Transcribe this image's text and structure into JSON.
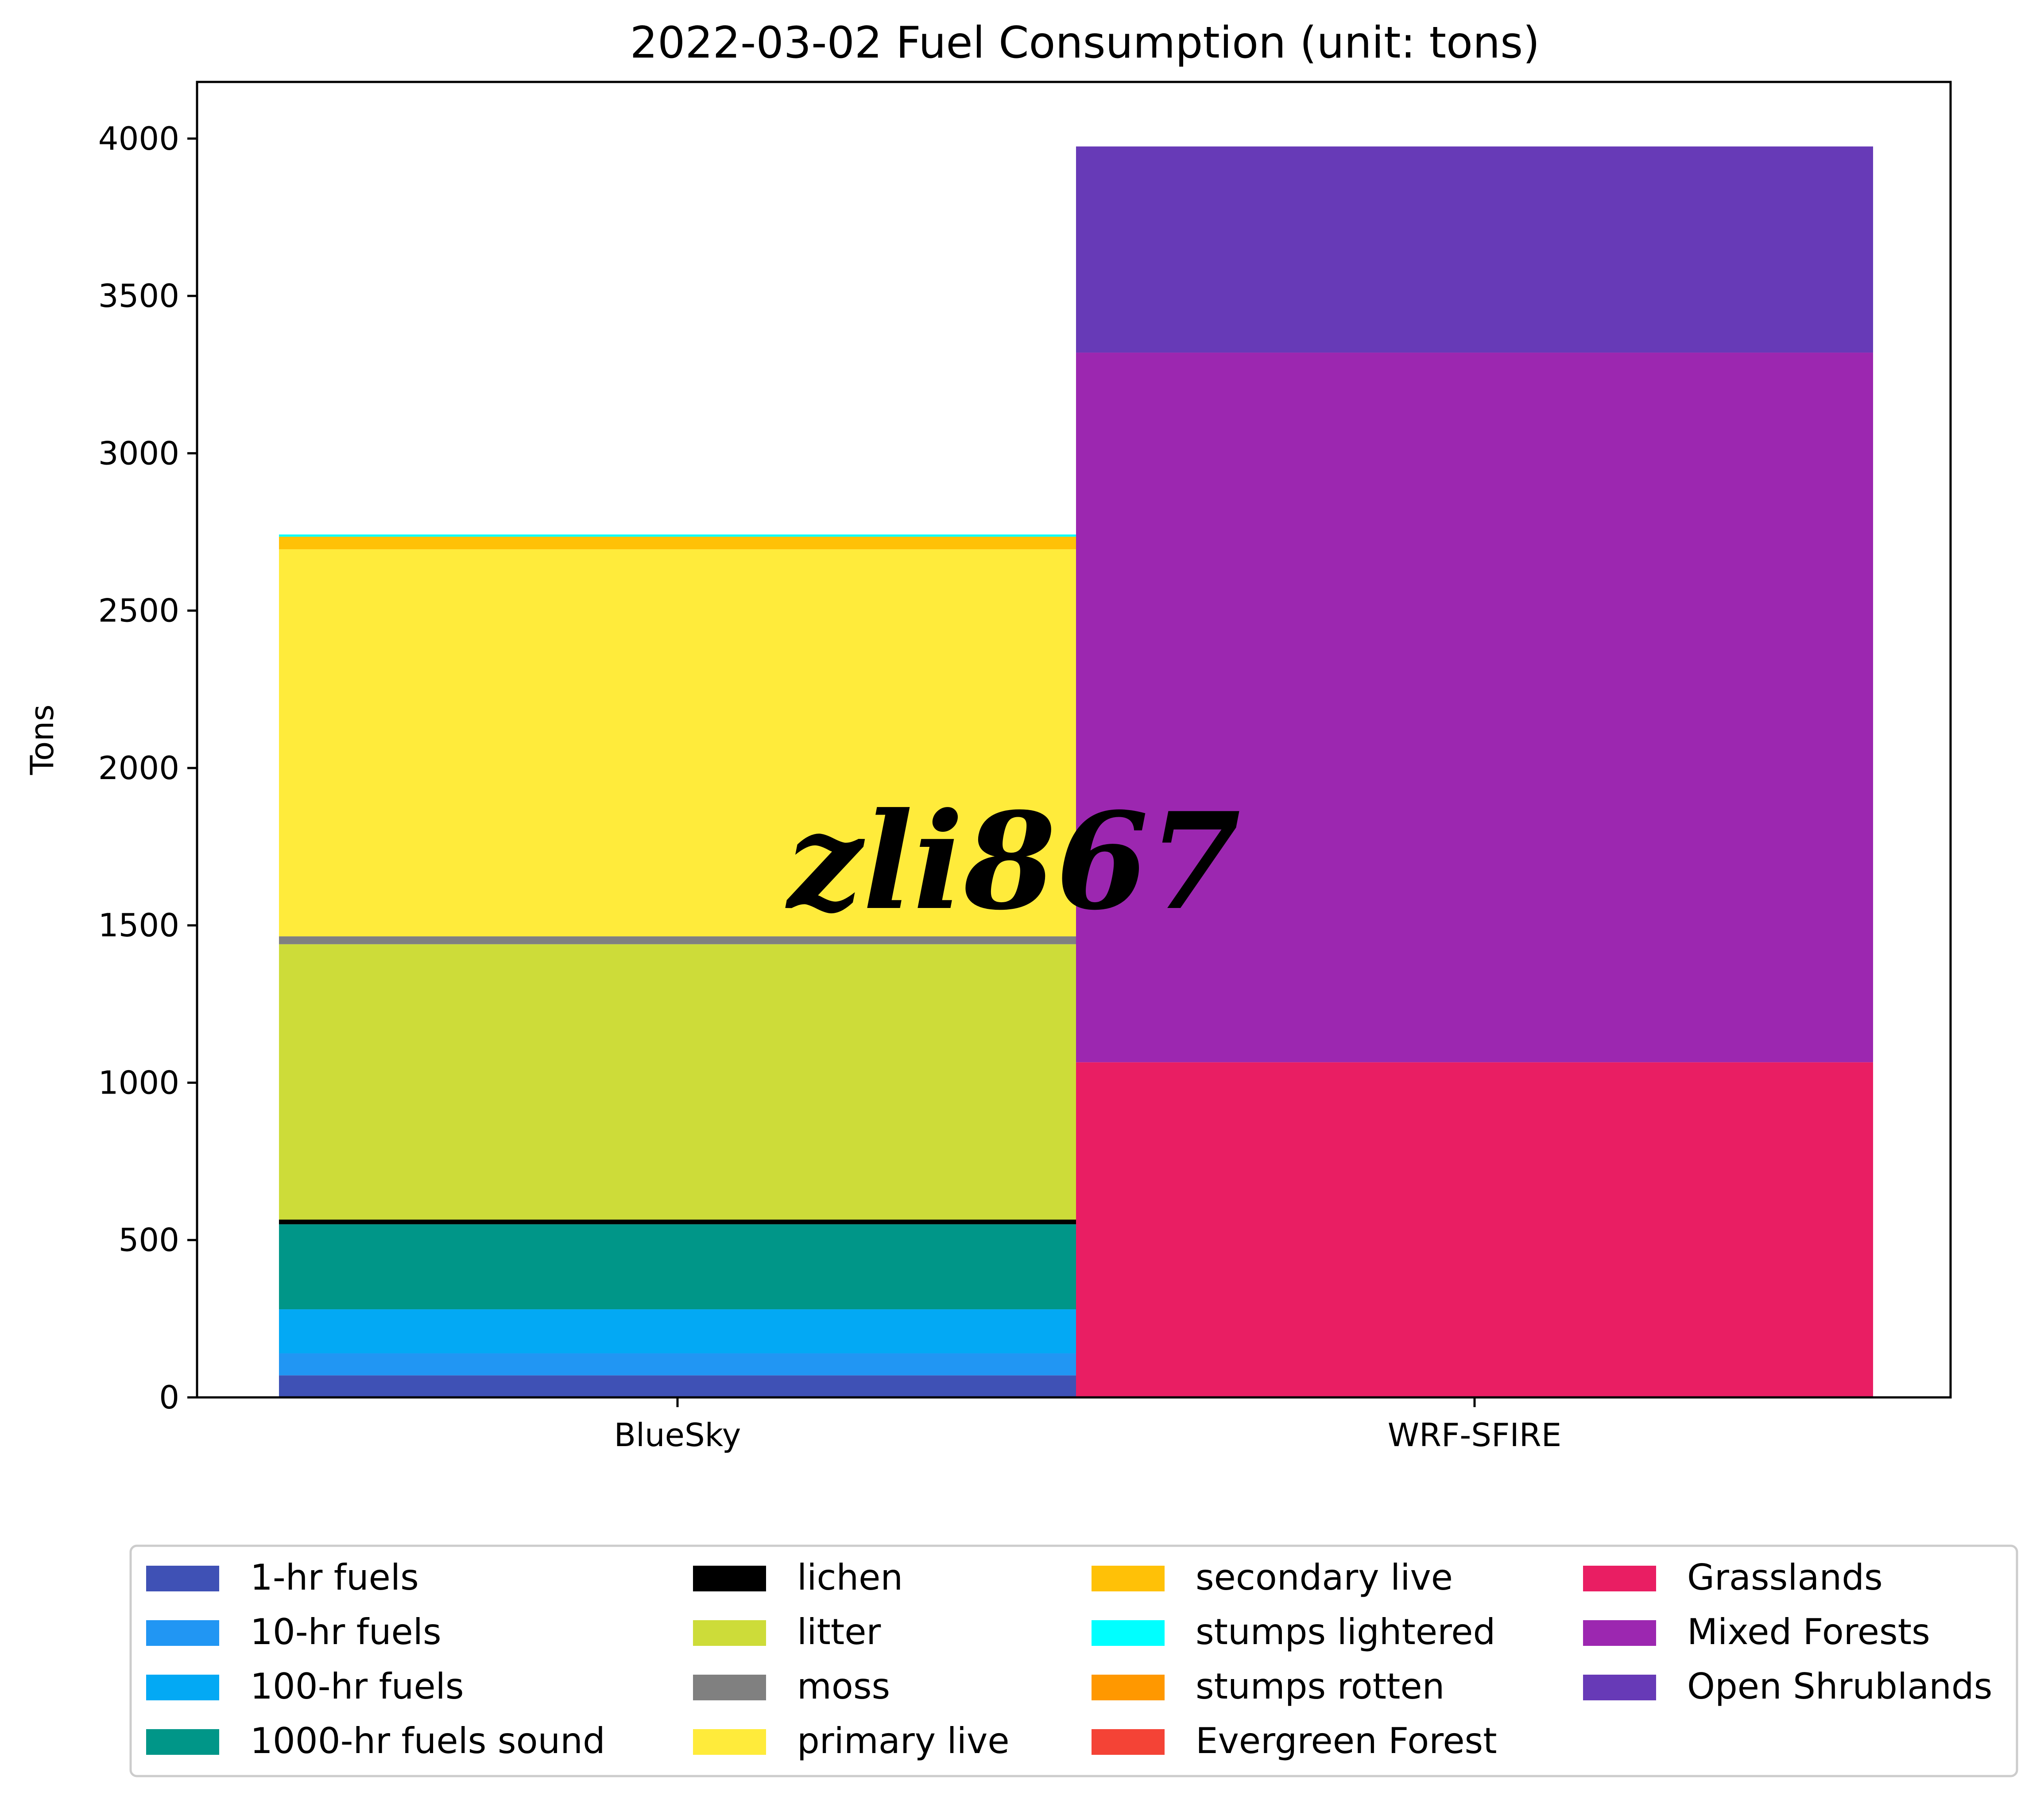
{
  "chart_data": {
    "type": "bar",
    "stacked": true,
    "title": "2022-03-02 Fuel Consumption (unit: tons)",
    "ylabel": "Tons",
    "xlabel": "",
    "ylim": [
      0,
      4180
    ],
    "yticks": [
      0,
      500,
      1000,
      1500,
      2000,
      2500,
      3000,
      3500,
      4000
    ],
    "categories": [
      "BlueSky",
      "WRF-SFIRE"
    ],
    "series": [
      {
        "name": "1-hr fuels",
        "color": "#3f51b5",
        "values": [
          70,
          0
        ]
      },
      {
        "name": "10-hr fuels",
        "color": "#2196f3",
        "values": [
          70,
          0
        ]
      },
      {
        "name": "100-hr fuels",
        "color": "#03a9f4",
        "values": [
          140,
          0
        ]
      },
      {
        "name": "1000-hr fuels sound",
        "color": "#009688",
        "values": [
          270,
          0
        ]
      },
      {
        "name": "lichen",
        "color": "#000000",
        "values": [
          15,
          0
        ]
      },
      {
        "name": "litter",
        "color": "#cddc39",
        "values": [
          875,
          0
        ]
      },
      {
        "name": "moss",
        "color": "#808080",
        "values": [
          25,
          0
        ]
      },
      {
        "name": "primary live",
        "color": "#ffeb3b",
        "values": [
          1230,
          0
        ]
      },
      {
        "name": "secondary live",
        "color": "#ffc107",
        "values": [
          40,
          0
        ]
      },
      {
        "name": "stumps lightered",
        "color": "#00ffff",
        "values": [
          7,
          0
        ]
      },
      {
        "name": "stumps rotten",
        "color": "#ff9800",
        "values": [
          0,
          0
        ]
      },
      {
        "name": "Evergreen Forest",
        "color": "#f44336",
        "values": [
          0,
          0
        ]
      },
      {
        "name": "Grasslands",
        "color": "#e91e63",
        "values": [
          0,
          1065
        ]
      },
      {
        "name": "Mixed Forests",
        "color": "#9c27b0",
        "values": [
          0,
          2255
        ]
      },
      {
        "name": "Open Shrublands",
        "color": "#673ab7",
        "values": [
          0,
          655
        ]
      }
    ],
    "legend_placement": "bottom",
    "legend_columns": 4,
    "grid": false
  },
  "watermark": "zli867"
}
